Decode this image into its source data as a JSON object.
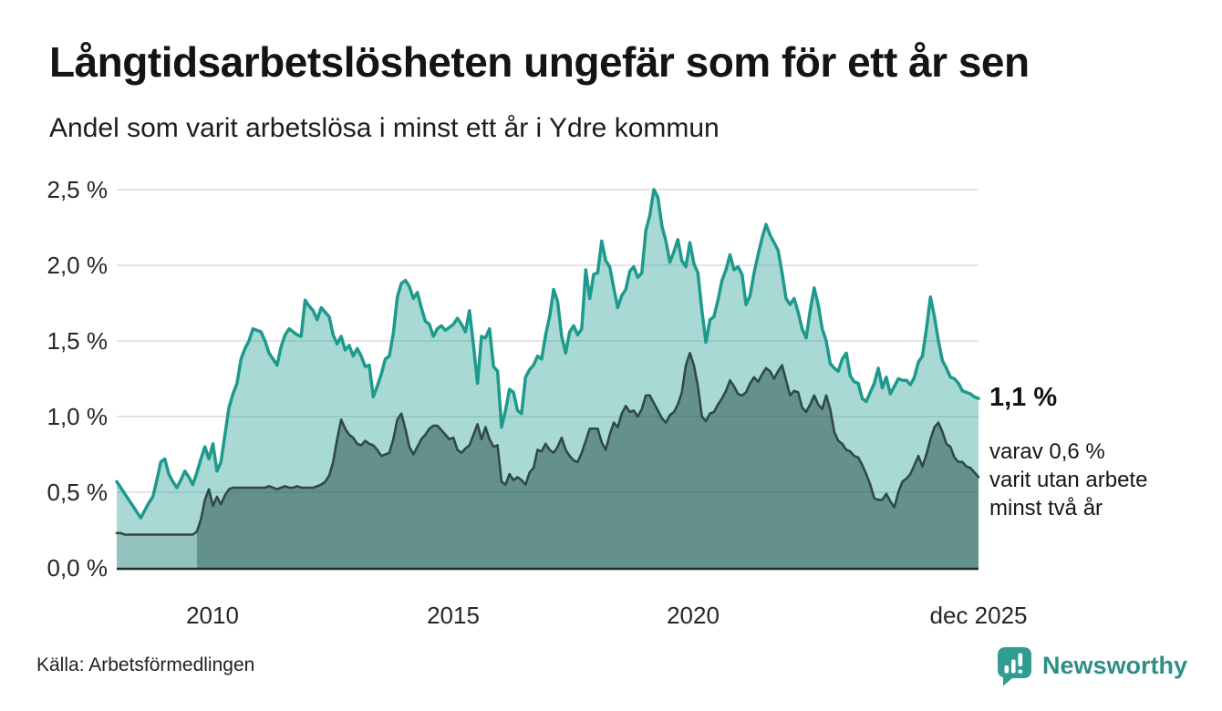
{
  "header": {
    "title": "Långtidsarbetslösheten ungefär som för ett år sen",
    "subtitle": "Andel som varit arbetslösa i minst ett år i Ydre kommun"
  },
  "annotations": {
    "latest_total": "1,1 %",
    "sub_line1": "varav 0,6 %",
    "sub_line2": "varit utan arbete",
    "sub_line3": "minst två år"
  },
  "footer": {
    "source": "Källa: Arbetsförmedlingen",
    "brand_name": "Newsworthy",
    "brand_icon": "newsworthy-speech-bubble-bar-chart-icon"
  },
  "colors": {
    "line_total": "#1d9a8d",
    "line_two_years": "#31484a",
    "area_total": "rgba(29,154,141,0.38)",
    "area_two_years": "rgba(16,58,54,0.45)",
    "area_two_years_faded": "rgba(16,58,54,0.14)",
    "grid": "#e3e4e7",
    "axis": "#1c2b2a",
    "brand_teal": "#2f9d92"
  },
  "chart_data": {
    "type": "area",
    "title": "Långtidsarbetslösheten ungefär som för ett år sen",
    "subtitle": "Andel som varit arbetslösa i minst ett år i Ydre kommun",
    "x_start_year": 2008.0,
    "x_interval": "monthly",
    "x_end_label": "dec 2025",
    "ylim": [
      0,
      2.5
    ],
    "grid": true,
    "legend": "none (direct annotations at line ends)",
    "y_ticks": [
      "0,0 %",
      "0,5 %",
      "1,0 %",
      "1,5 %",
      "2,0 %",
      "2,5 %"
    ],
    "x_ticks": [
      "2010",
      "2015",
      "2020",
      "dec 2025"
    ],
    "x_tick_years": [
      2010.0,
      2015.0,
      2020.0,
      2025.917
    ],
    "series": [
      {
        "name": "Arbetslösa minst ett år",
        "color": "#1d9a8d",
        "end_value_label": "1,1 %",
        "values": [
          0.57,
          0.53,
          0.49,
          0.45,
          0.41,
          0.37,
          0.33,
          0.38,
          0.43,
          0.47,
          0.58,
          0.7,
          0.72,
          0.62,
          0.57,
          0.53,
          0.58,
          0.64,
          0.6,
          0.55,
          0.63,
          0.72,
          0.8,
          0.72,
          0.82,
          0.64,
          0.7,
          0.88,
          1.06,
          1.15,
          1.22,
          1.38,
          1.45,
          1.5,
          1.58,
          1.57,
          1.56,
          1.5,
          1.42,
          1.38,
          1.34,
          1.46,
          1.54,
          1.58,
          1.56,
          1.54,
          1.53,
          1.77,
          1.73,
          1.7,
          1.64,
          1.72,
          1.69,
          1.66,
          1.54,
          1.48,
          1.53,
          1.44,
          1.47,
          1.4,
          1.45,
          1.4,
          1.33,
          1.34,
          1.13,
          1.2,
          1.28,
          1.38,
          1.4,
          1.55,
          1.79,
          1.88,
          1.9,
          1.86,
          1.78,
          1.82,
          1.72,
          1.63,
          1.61,
          1.53,
          1.58,
          1.6,
          1.57,
          1.59,
          1.61,
          1.65,
          1.61,
          1.56,
          1.7,
          1.47,
          1.22,
          1.53,
          1.52,
          1.58,
          1.33,
          1.3,
          0.93,
          1.04,
          1.18,
          1.16,
          1.04,
          1.02,
          1.26,
          1.31,
          1.34,
          1.4,
          1.38,
          1.54,
          1.66,
          1.84,
          1.76,
          1.53,
          1.42,
          1.56,
          1.6,
          1.54,
          1.58,
          1.97,
          1.78,
          1.94,
          1.95,
          2.16,
          2.03,
          1.99,
          1.85,
          1.72,
          1.8,
          1.84,
          1.96,
          1.99,
          1.92,
          1.95,
          2.23,
          2.33,
          2.5,
          2.45,
          2.26,
          2.16,
          2.02,
          2.09,
          2.17,
          2.03,
          1.99,
          2.15,
          2.01,
          1.95,
          1.7,
          1.49,
          1.64,
          1.66,
          1.77,
          1.9,
          1.97,
          2.07,
          1.97,
          1.99,
          1.94,
          1.74,
          1.8,
          1.95,
          2.07,
          2.18,
          2.27,
          2.2,
          2.15,
          2.1,
          1.95,
          1.78,
          1.74,
          1.78,
          1.69,
          1.58,
          1.52,
          1.7,
          1.85,
          1.74,
          1.58,
          1.5,
          1.35,
          1.32,
          1.3,
          1.38,
          1.42,
          1.27,
          1.23,
          1.22,
          1.12,
          1.1,
          1.16,
          1.22,
          1.32,
          1.19,
          1.26,
          1.15,
          1.2,
          1.25,
          1.24,
          1.24,
          1.21,
          1.26,
          1.36,
          1.4,
          1.58,
          1.79,
          1.66,
          1.5,
          1.37,
          1.32,
          1.26,
          1.25,
          1.22,
          1.17,
          1.16,
          1.15,
          1.13,
          1.12
        ]
      },
      {
        "name": "Varav utan arbete minst två år",
        "color": "#31484a",
        "end_value_label": "0,6 %",
        "faded_until_index": 20,
        "values": [
          0.23,
          0.23,
          0.22,
          0.22,
          0.22,
          0.22,
          0.22,
          0.22,
          0.22,
          0.22,
          0.22,
          0.22,
          0.22,
          0.22,
          0.22,
          0.22,
          0.22,
          0.22,
          0.22,
          0.22,
          0.24,
          0.32,
          0.45,
          0.52,
          0.41,
          0.47,
          0.42,
          0.48,
          0.52,
          0.53,
          0.53,
          0.53,
          0.53,
          0.53,
          0.53,
          0.53,
          0.53,
          0.53,
          0.54,
          0.53,
          0.52,
          0.53,
          0.54,
          0.53,
          0.53,
          0.54,
          0.53,
          0.53,
          0.53,
          0.53,
          0.54,
          0.55,
          0.57,
          0.61,
          0.7,
          0.85,
          0.98,
          0.92,
          0.88,
          0.86,
          0.82,
          0.81,
          0.84,
          0.82,
          0.81,
          0.78,
          0.74,
          0.75,
          0.76,
          0.85,
          0.98,
          1.02,
          0.92,
          0.8,
          0.75,
          0.8,
          0.85,
          0.88,
          0.92,
          0.94,
          0.94,
          0.91,
          0.88,
          0.85,
          0.86,
          0.78,
          0.76,
          0.79,
          0.81,
          0.88,
          0.95,
          0.85,
          0.93,
          0.85,
          0.8,
          0.81,
          0.57,
          0.55,
          0.62,
          0.58,
          0.6,
          0.58,
          0.55,
          0.63,
          0.66,
          0.78,
          0.77,
          0.82,
          0.78,
          0.76,
          0.8,
          0.86,
          0.78,
          0.74,
          0.71,
          0.7,
          0.76,
          0.84,
          0.92,
          0.92,
          0.92,
          0.83,
          0.78,
          0.88,
          0.96,
          0.93,
          1.02,
          1.07,
          1.03,
          1.04,
          1.0,
          1.05,
          1.14,
          1.14,
          1.09,
          1.04,
          0.99,
          0.96,
          1.01,
          1.03,
          1.08,
          1.16,
          1.34,
          1.42,
          1.34,
          1.2,
          1.0,
          0.97,
          1.02,
          1.03,
          1.08,
          1.12,
          1.17,
          1.24,
          1.2,
          1.15,
          1.14,
          1.16,
          1.22,
          1.26,
          1.23,
          1.28,
          1.32,
          1.3,
          1.25,
          1.3,
          1.34,
          1.24,
          1.14,
          1.17,
          1.16,
          1.06,
          1.03,
          1.08,
          1.14,
          1.08,
          1.05,
          1.14,
          1.05,
          0.9,
          0.84,
          0.82,
          0.78,
          0.77,
          0.74,
          0.73,
          0.68,
          0.62,
          0.55,
          0.46,
          0.45,
          0.45,
          0.49,
          0.44,
          0.4,
          0.5,
          0.57,
          0.59,
          0.62,
          0.68,
          0.74,
          0.67,
          0.75,
          0.85,
          0.93,
          0.96,
          0.9,
          0.82,
          0.8,
          0.73,
          0.7,
          0.7,
          0.67,
          0.66,
          0.63,
          0.6
        ]
      }
    ]
  }
}
